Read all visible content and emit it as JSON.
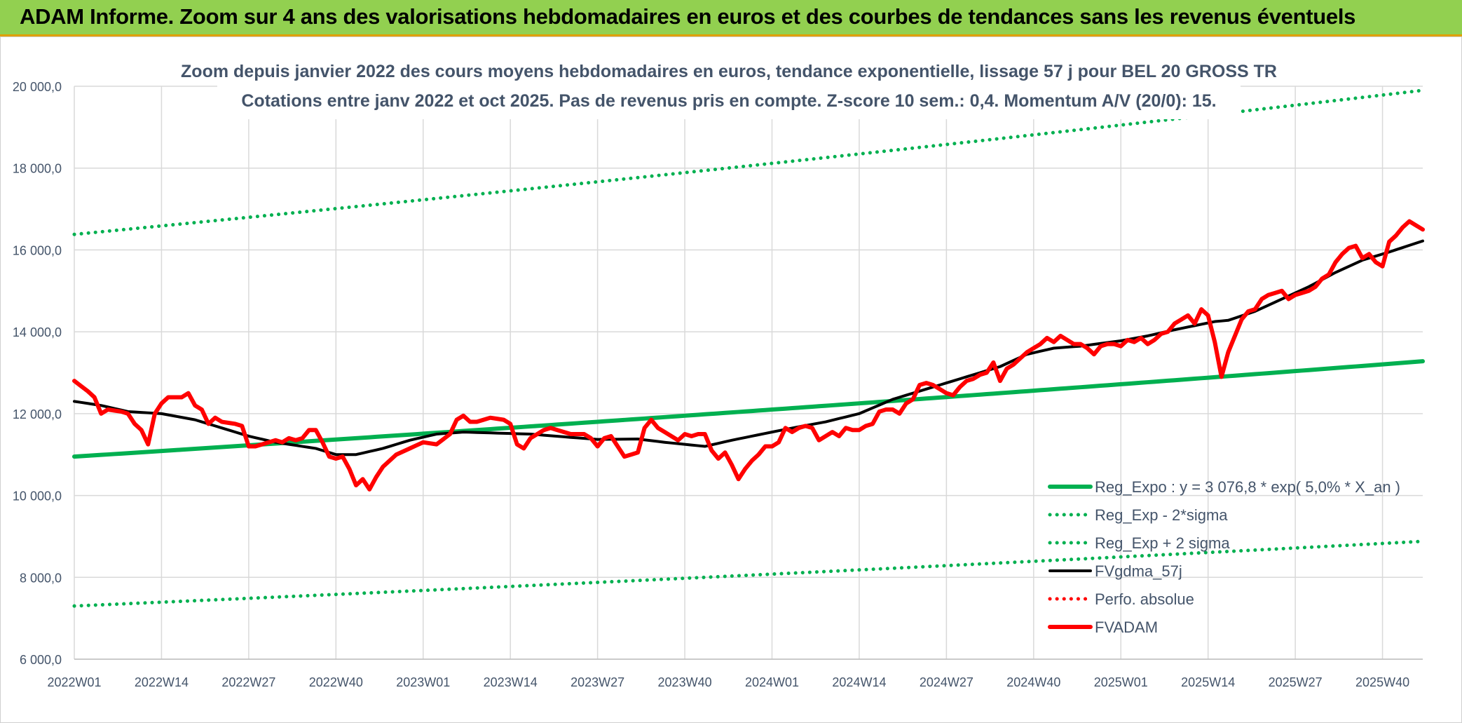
{
  "banner": {
    "title": "ADAM Informe. Zoom sur 4 ans des valorisations hebdomadaires en euros et des courbes de tendances sans les revenus éventuels"
  },
  "chart_data": {
    "type": "line",
    "title": "Zoom depuis janvier 2022 des cours moyens hebdomadaires en euros, tendance exponentielle, lissage 57 j pour BEL 20 GROSS TR",
    "subtitle": "Cotations entre janv 2022 et oct 2025. Pas de revenus pris en compte. Z-score 10 sem.: 0,4. Momentum A/V (20/0): 15.",
    "xlabel": "",
    "ylabel": "",
    "ylim": [
      6000,
      20000
    ],
    "y_ticks": [
      6000,
      8000,
      10000,
      12000,
      14000,
      16000,
      18000,
      20000
    ],
    "y_tick_labels": [
      "6 000,0",
      "8 000,0",
      "10 000,0",
      "12 000,0",
      "14 000,0",
      "16 000,0",
      "18 000,0",
      "20 000,0"
    ],
    "x_tick_labels": [
      "2022W01",
      "2022W14",
      "2022W27",
      "2022W40",
      "2023W01",
      "2023W14",
      "2023W27",
      "2023W40",
      "2024W01",
      "2024W14",
      "2024W27",
      "2024W40",
      "2025W01",
      "2025W14",
      "2025W27",
      "2025W40"
    ],
    "x_tick_index": [
      0,
      13,
      26,
      39,
      52,
      65,
      78,
      91,
      104,
      117,
      130,
      143,
      156,
      169,
      182,
      195
    ],
    "n_points": 202,
    "grid": true,
    "legend_position": "bottom-right",
    "series": [
      {
        "name": "Reg_Expo : y = 3 076,8 * exp( 5,0% *  X_an )",
        "color": "#00B050",
        "style": "solid-thick",
        "start": 10950,
        "end": 13280
      },
      {
        "name": "Reg_Exp - 2*sigma",
        "color": "#00B050",
        "style": "dotted",
        "start": 7300,
        "end": 8880
      },
      {
        "name": "Reg_Exp + 2 sigma",
        "color": "#00B050",
        "style": "dotted",
        "start": 16380,
        "end": 19900
      },
      {
        "name": "FVgdma_57j",
        "color": "#000000",
        "style": "solid",
        "keypoints": [
          [
            0,
            12300
          ],
          [
            4,
            12200
          ],
          [
            8,
            12050
          ],
          [
            13,
            12000
          ],
          [
            18,
            11850
          ],
          [
            22,
            11650
          ],
          [
            26,
            11450
          ],
          [
            30,
            11300
          ],
          [
            36,
            11150
          ],
          [
            39,
            11000
          ],
          [
            42,
            11000
          ],
          [
            46,
            11150
          ],
          [
            50,
            11350
          ],
          [
            54,
            11500
          ],
          [
            58,
            11550
          ],
          [
            62,
            11530
          ],
          [
            68,
            11500
          ],
          [
            74,
            11420
          ],
          [
            78,
            11370
          ],
          [
            84,
            11380
          ],
          [
            88,
            11300
          ],
          [
            94,
            11200
          ],
          [
            98,
            11350
          ],
          [
            104,
            11550
          ],
          [
            108,
            11680
          ],
          [
            112,
            11800
          ],
          [
            117,
            12000
          ],
          [
            122,
            12350
          ],
          [
            126,
            12550
          ],
          [
            130,
            12750
          ],
          [
            134,
            12950
          ],
          [
            138,
            13150
          ],
          [
            142,
            13450
          ],
          [
            146,
            13600
          ],
          [
            150,
            13650
          ],
          [
            156,
            13780
          ],
          [
            160,
            13900
          ],
          [
            164,
            14050
          ],
          [
            170,
            14250
          ],
          [
            172,
            14280
          ],
          [
            176,
            14500
          ],
          [
            180,
            14800
          ],
          [
            184,
            15100
          ],
          [
            188,
            15450
          ],
          [
            192,
            15750
          ],
          [
            196,
            15950
          ],
          [
            201,
            16220
          ]
        ]
      },
      {
        "name": "Perfo. absolue",
        "color": "#FF0000",
        "style": "dotted",
        "keypoints": []
      },
      {
        "name": "FVADAM",
        "color": "#FF0000",
        "style": "solid-thick",
        "keypoints": [
          [
            0,
            12800
          ],
          [
            2,
            12550
          ],
          [
            3,
            12400
          ],
          [
            4,
            12000
          ],
          [
            5,
            12100
          ],
          [
            7,
            12050
          ],
          [
            8,
            12000
          ],
          [
            9,
            11750
          ],
          [
            10,
            11600
          ],
          [
            11,
            11250
          ],
          [
            12,
            12000
          ],
          [
            13,
            12250
          ],
          [
            14,
            12400
          ],
          [
            15,
            12400
          ],
          [
            16,
            12400
          ],
          [
            17,
            12500
          ],
          [
            18,
            12200
          ],
          [
            19,
            12100
          ],
          [
            20,
            11750
          ],
          [
            21,
            11900
          ],
          [
            22,
            11800
          ],
          [
            24,
            11750
          ],
          [
            25,
            11700
          ],
          [
            26,
            11200
          ],
          [
            27,
            11200
          ],
          [
            28,
            11250
          ],
          [
            30,
            11350
          ],
          [
            31,
            11300
          ],
          [
            32,
            11400
          ],
          [
            33,
            11350
          ],
          [
            34,
            11400
          ],
          [
            35,
            11600
          ],
          [
            36,
            11600
          ],
          [
            37,
            11300
          ],
          [
            38,
            10950
          ],
          [
            39,
            10900
          ],
          [
            40,
            10950
          ],
          [
            41,
            10650
          ],
          [
            42,
            10250
          ],
          [
            43,
            10400
          ],
          [
            44,
            10150
          ],
          [
            45,
            10450
          ],
          [
            46,
            10700
          ],
          [
            47,
            10850
          ],
          [
            48,
            11000
          ],
          [
            50,
            11150
          ],
          [
            52,
            11300
          ],
          [
            54,
            11250
          ],
          [
            56,
            11500
          ],
          [
            57,
            11850
          ],
          [
            58,
            11950
          ],
          [
            59,
            11800
          ],
          [
            60,
            11800
          ],
          [
            61,
            11850
          ],
          [
            62,
            11900
          ],
          [
            64,
            11850
          ],
          [
            65,
            11750
          ],
          [
            66,
            11250
          ],
          [
            67,
            11150
          ],
          [
            68,
            11400
          ],
          [
            70,
            11600
          ],
          [
            71,
            11650
          ],
          [
            72,
            11600
          ],
          [
            74,
            11500
          ],
          [
            76,
            11500
          ],
          [
            77,
            11400
          ],
          [
            78,
            11200
          ],
          [
            79,
            11400
          ],
          [
            80,
            11450
          ],
          [
            81,
            11200
          ],
          [
            82,
            10950
          ],
          [
            84,
            11050
          ],
          [
            85,
            11650
          ],
          [
            86,
            11850
          ],
          [
            87,
            11650
          ],
          [
            88,
            11550
          ],
          [
            89,
            11450
          ],
          [
            90,
            11350
          ],
          [
            91,
            11500
          ],
          [
            92,
            11450
          ],
          [
            93,
            11500
          ],
          [
            94,
            11500
          ],
          [
            95,
            11100
          ],
          [
            96,
            10900
          ],
          [
            97,
            11050
          ],
          [
            98,
            10750
          ],
          [
            99,
            10400
          ],
          [
            100,
            10650
          ],
          [
            101,
            10850
          ],
          [
            102,
            11000
          ],
          [
            103,
            11200
          ],
          [
            104,
            11200
          ],
          [
            105,
            11300
          ],
          [
            106,
            11650
          ],
          [
            107,
            11550
          ],
          [
            108,
            11650
          ],
          [
            109,
            11700
          ],
          [
            110,
            11650
          ],
          [
            111,
            11350
          ],
          [
            112,
            11450
          ],
          [
            113,
            11550
          ],
          [
            114,
            11450
          ],
          [
            115,
            11650
          ],
          [
            116,
            11600
          ],
          [
            117,
            11600
          ],
          [
            118,
            11700
          ],
          [
            119,
            11750
          ],
          [
            120,
            12050
          ],
          [
            121,
            12100
          ],
          [
            122,
            12100
          ],
          [
            123,
            12000
          ],
          [
            124,
            12250
          ],
          [
            125,
            12350
          ],
          [
            126,
            12700
          ],
          [
            127,
            12750
          ],
          [
            128,
            12700
          ],
          [
            129,
            12600
          ],
          [
            130,
            12500
          ],
          [
            131,
            12450
          ],
          [
            132,
            12650
          ],
          [
            133,
            12800
          ],
          [
            134,
            12850
          ],
          [
            135,
            12950
          ],
          [
            136,
            13000
          ],
          [
            137,
            13250
          ],
          [
            138,
            12800
          ],
          [
            139,
            13100
          ],
          [
            140,
            13200
          ],
          [
            141,
            13350
          ],
          [
            142,
            13500
          ],
          [
            143,
            13600
          ],
          [
            144,
            13700
          ],
          [
            145,
            13850
          ],
          [
            146,
            13750
          ],
          [
            147,
            13900
          ],
          [
            148,
            13800
          ],
          [
            149,
            13700
          ],
          [
            150,
            13700
          ],
          [
            151,
            13600
          ],
          [
            152,
            13450
          ],
          [
            153,
            13650
          ],
          [
            154,
            13700
          ],
          [
            155,
            13700
          ],
          [
            156,
            13650
          ],
          [
            157,
            13800
          ],
          [
            158,
            13750
          ],
          [
            159,
            13850
          ],
          [
            160,
            13700
          ],
          [
            161,
            13800
          ],
          [
            162,
            13950
          ],
          [
            163,
            14000
          ],
          [
            164,
            14200
          ],
          [
            165,
            14300
          ],
          [
            166,
            14400
          ],
          [
            167,
            14200
          ],
          [
            168,
            14550
          ],
          [
            169,
            14400
          ],
          [
            170,
            13750
          ],
          [
            171,
            12900
          ],
          [
            172,
            13500
          ],
          [
            173,
            13900
          ],
          [
            174,
            14300
          ],
          [
            175,
            14500
          ],
          [
            176,
            14550
          ],
          [
            177,
            14800
          ],
          [
            178,
            14900
          ],
          [
            179,
            14950
          ],
          [
            180,
            15000
          ],
          [
            181,
            14800
          ],
          [
            182,
            14900
          ],
          [
            183,
            14950
          ],
          [
            184,
            15000
          ],
          [
            185,
            15100
          ],
          [
            186,
            15300
          ],
          [
            187,
            15400
          ],
          [
            188,
            15700
          ],
          [
            189,
            15900
          ],
          [
            190,
            16050
          ],
          [
            191,
            16100
          ],
          [
            192,
            15800
          ],
          [
            193,
            15900
          ],
          [
            194,
            15700
          ],
          [
            195,
            15600
          ],
          [
            196,
            16200
          ],
          [
            197,
            16350
          ],
          [
            198,
            16550
          ],
          [
            199,
            16700
          ],
          [
            200,
            16600
          ],
          [
            201,
            16500
          ]
        ]
      }
    ]
  }
}
